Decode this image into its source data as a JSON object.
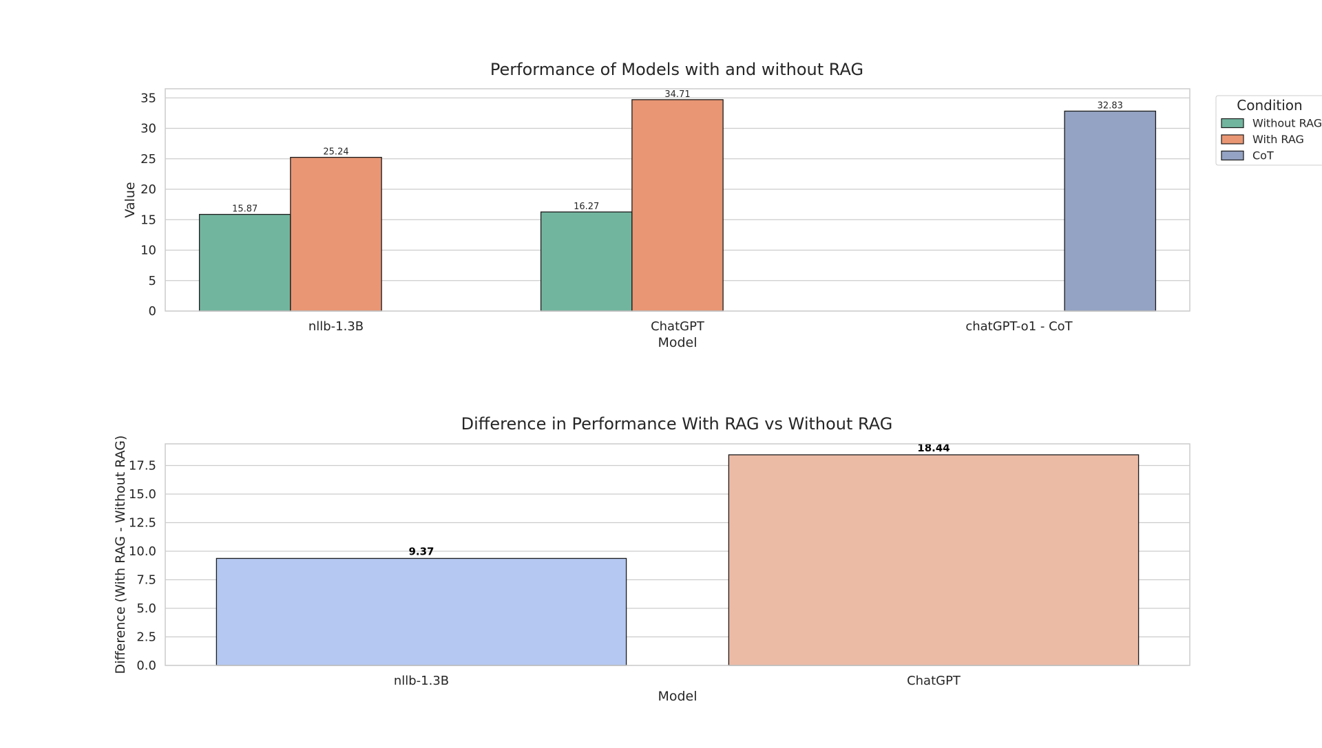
{
  "chart_data": [
    {
      "type": "bar",
      "title": "Performance of Models with and without RAG",
      "xlabel": "Model",
      "ylabel": "Value",
      "categories": [
        "nllb-1.3B",
        "ChatGPT",
        "chatGPT-o1 - CoT"
      ],
      "ylim": [
        0,
        36.5
      ],
      "yticks": [
        0,
        5,
        10,
        15,
        20,
        25,
        30,
        35
      ],
      "grid": true,
      "legend": {
        "title": "Condition",
        "placement": "outside top-right",
        "entries": [
          "Without RAG",
          "With RAG",
          "CoT"
        ]
      },
      "series": [
        {
          "name": "Without RAG",
          "color": "#72b59f",
          "values": [
            15.87,
            16.27,
            null
          ],
          "labels": [
            "15.87",
            "16.27",
            ""
          ]
        },
        {
          "name": "With RAG",
          "color": "#e99674",
          "values": [
            25.24,
            34.71,
            null
          ],
          "labels": [
            "25.24",
            "34.71",
            ""
          ]
        },
        {
          "name": "CoT",
          "color": "#94a3c3",
          "values": [
            null,
            null,
            32.83
          ],
          "labels": [
            "",
            "",
            "32.83"
          ]
        }
      ]
    },
    {
      "type": "bar",
      "title": "Difference in Performance With RAG vs Without RAG",
      "xlabel": "Model",
      "ylabel": "Difference (With RAG - Without RAG)",
      "categories": [
        "nllb-1.3B",
        "ChatGPT"
      ],
      "values": [
        9.37,
        18.44
      ],
      "labels": [
        "9.37",
        "18.44"
      ],
      "colors": [
        "#b4c8f1",
        "#ecbba6"
      ],
      "ylim": [
        0,
        19.4
      ],
      "yticks": [
        "0.0",
        "2.5",
        "5.0",
        "7.5",
        "10.0",
        "12.5",
        "15.0",
        "17.5"
      ],
      "grid": true
    }
  ]
}
